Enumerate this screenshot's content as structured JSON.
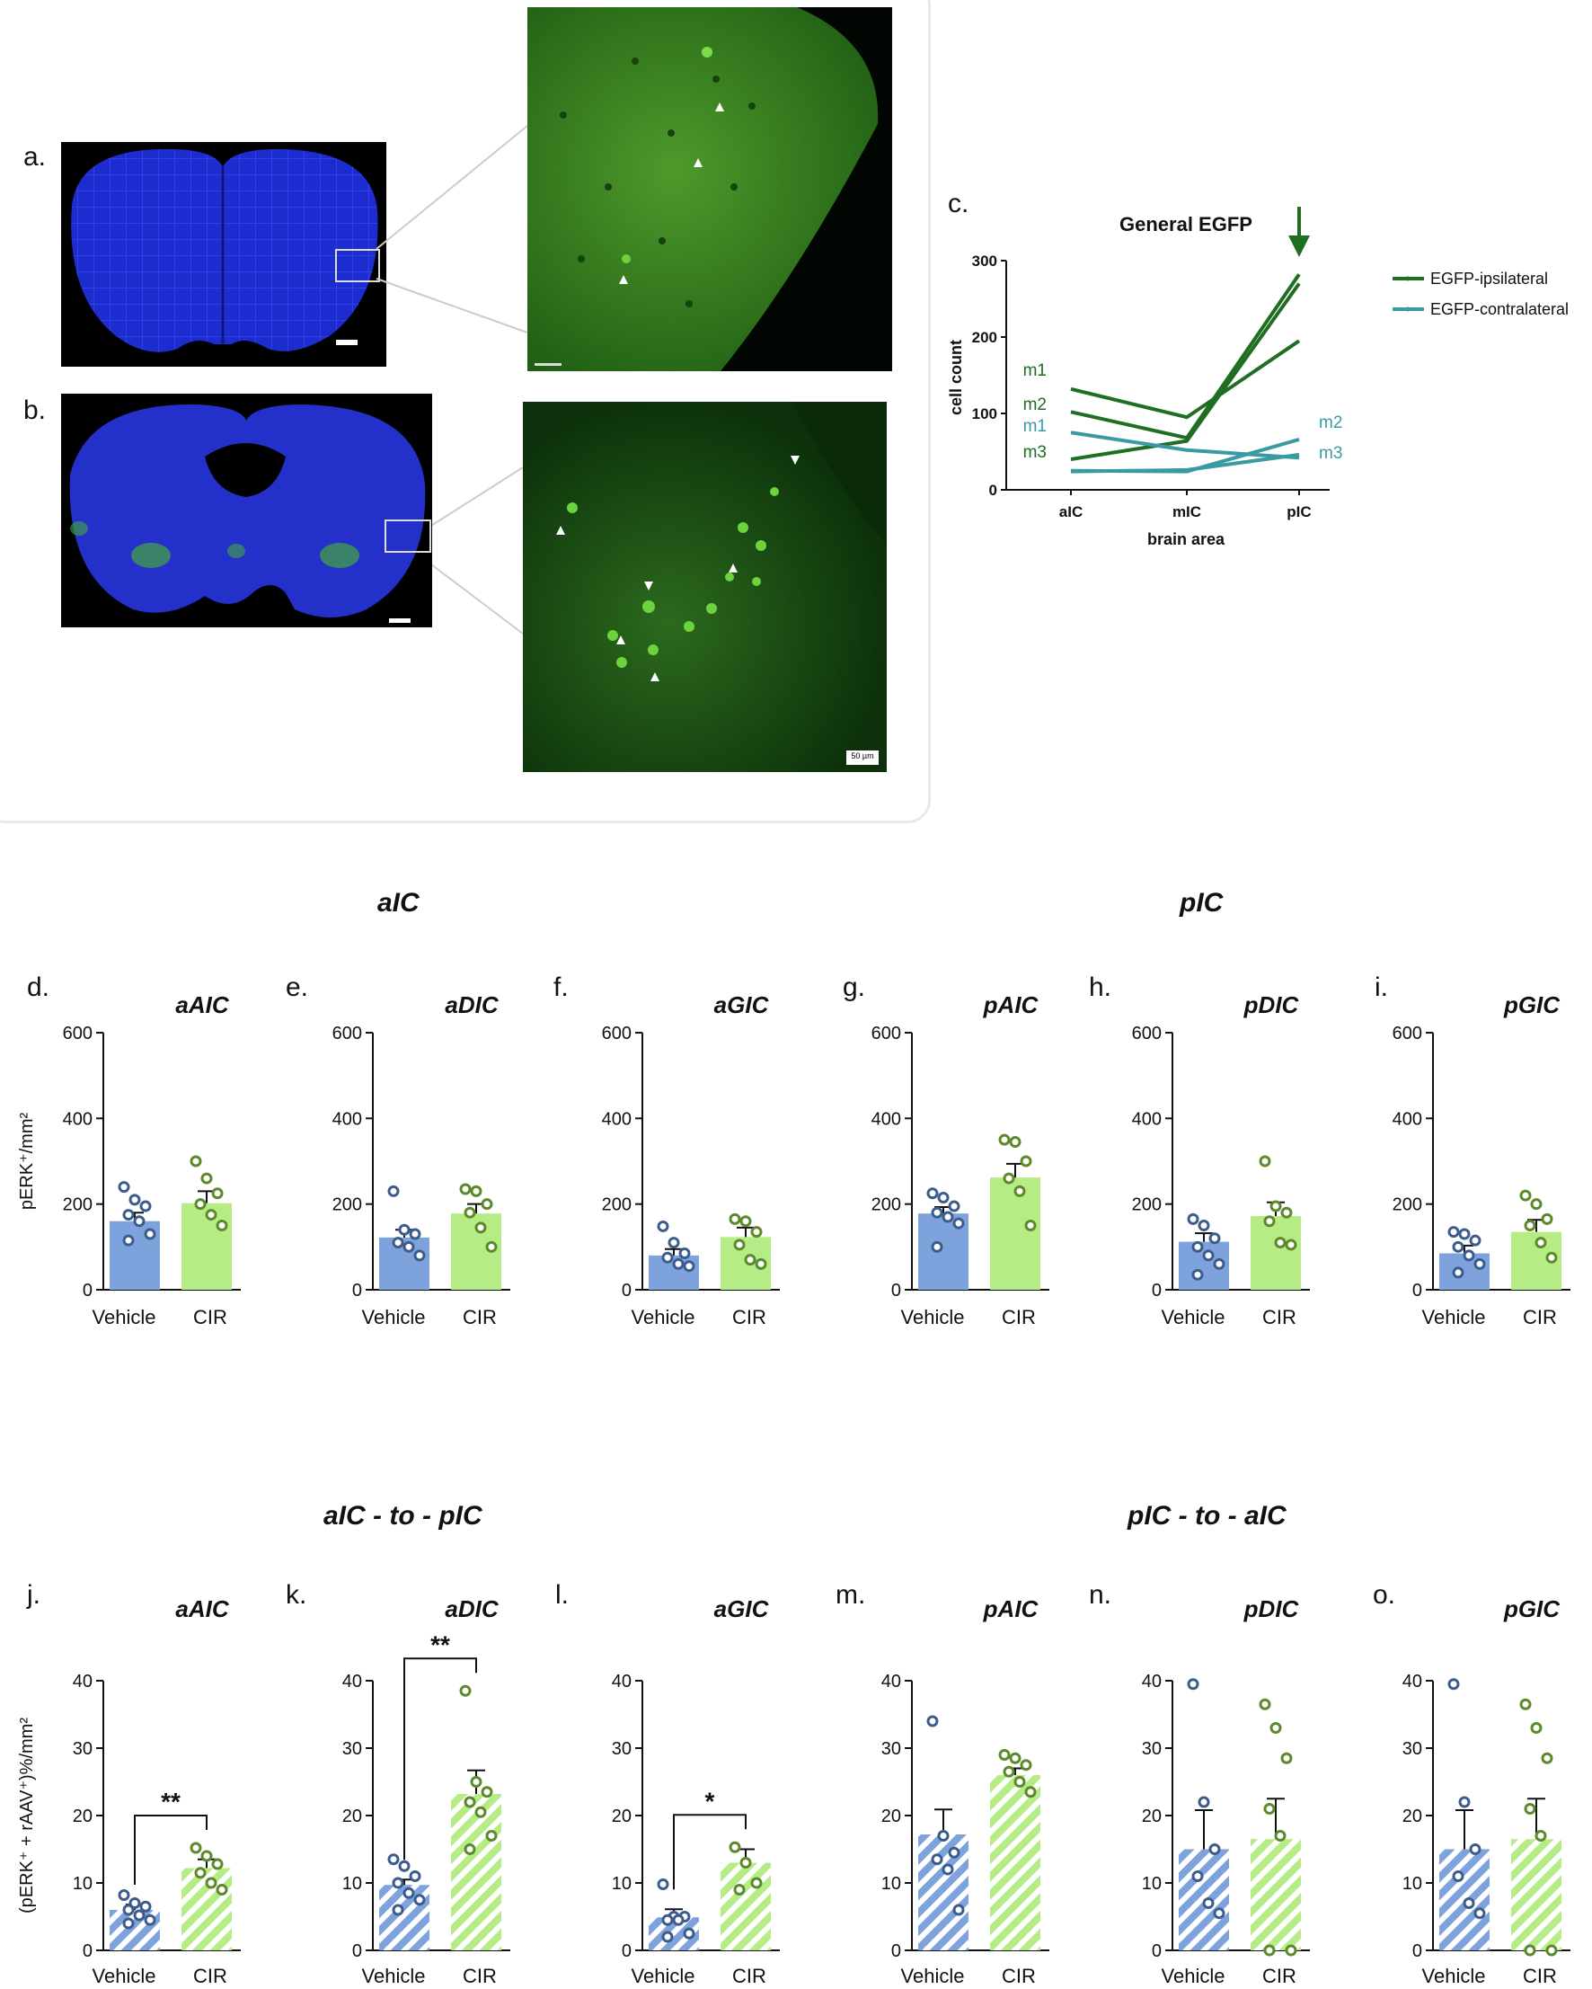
{
  "panel_labels": {
    "a": "a.",
    "b": "b.",
    "c": "c.",
    "d": "d.",
    "e": "e.",
    "f": "f.",
    "g": "g.",
    "h": "h.",
    "i": "i.",
    "j": "j.",
    "k": "k.",
    "l": "l.",
    "m": "m.",
    "n": "n.",
    "o": "o."
  },
  "scale_bar": "50 µm",
  "section_titles": {
    "top_left": "aIC",
    "top_right": "pIC",
    "bottom_left": "aIC - to - pIC",
    "bottom_right": "pIC - to - aIC"
  },
  "colors": {
    "vehicle": "#7ea3dc",
    "cir": "#b6ec86",
    "vehicle_dot": "#3d5c8e",
    "cir_dot": "#5c8a2a",
    "ipsi": "#1f6e22",
    "contra": "#3a9aa2",
    "micro_bg": "#0c3a0c",
    "dapi": "#1f2fd8"
  },
  "chart_data": [
    {
      "id": "c",
      "type": "line",
      "title": "General EGFP",
      "xlabel": "brain area",
      "ylabel": "cell count",
      "categories": [
        "aIC",
        "mIC",
        "pIC"
      ],
      "ylim": [
        0,
        300
      ],
      "yticks": [
        0,
        100,
        200,
        300
      ],
      "series": [
        {
          "name": "EGFP-ipsilateral",
          "group": "ipsi",
          "labels": [
            "m1",
            "m2",
            "m3"
          ],
          "lines": [
            [
              132,
              95,
              195
            ],
            [
              102,
              68,
              282
            ],
            [
              40,
              64,
              270
            ]
          ]
        },
        {
          "name": "EGFP-contralateral",
          "group": "contra",
          "labels": [
            "m1",
            "m2",
            "m3"
          ],
          "lines": [
            [
              75,
              52,
              42
            ],
            [
              25,
              24,
              66
            ],
            [
              24,
              26,
              46
            ]
          ]
        }
      ]
    },
    {
      "id": "d",
      "type": "bar",
      "title": "aAIC",
      "ylabel": "pERK⁺/mm²",
      "ylim": [
        0,
        600
      ],
      "yticks": [
        0,
        200,
        400,
        600
      ],
      "categories": [
        "Vehicle",
        "CIR"
      ],
      "values": [
        160,
        202
      ],
      "sem": [
        20,
        28
      ],
      "points": [
        [
          240,
          210,
          195,
          175,
          160,
          130,
          115
        ],
        [
          300,
          260,
          225,
          200,
          175,
          150
        ]
      ],
      "hatched": false
    },
    {
      "id": "e",
      "type": "bar",
      "title": "aDIC",
      "ylim": [
        0,
        600
      ],
      "yticks": [
        0,
        200,
        400,
        600
      ],
      "categories": [
        "Vehicle",
        "CIR"
      ],
      "values": [
        122,
        178
      ],
      "sem": [
        18,
        22
      ],
      "points": [
        [
          230,
          140,
          130,
          110,
          100,
          80
        ],
        [
          235,
          230,
          200,
          180,
          145,
          100
        ]
      ],
      "hatched": false
    },
    {
      "id": "f",
      "type": "bar",
      "title": "aGIC",
      "ylim": [
        0,
        600
      ],
      "yticks": [
        0,
        200,
        400,
        600
      ],
      "categories": [
        "Vehicle",
        "CIR"
      ],
      "values": [
        80,
        123
      ],
      "sem": [
        15,
        22
      ],
      "points": [
        [
          148,
          110,
          85,
          75,
          60,
          55
        ],
        [
          165,
          160,
          135,
          105,
          70,
          60
        ]
      ],
      "hatched": false
    },
    {
      "id": "g",
      "type": "bar",
      "title": "pAIC",
      "ylim": [
        0,
        600
      ],
      "yticks": [
        0,
        200,
        400,
        600
      ],
      "categories": [
        "Vehicle",
        "CIR"
      ],
      "values": [
        178,
        262
      ],
      "sem": [
        15,
        32
      ],
      "points": [
        [
          225,
          215,
          195,
          180,
          170,
          155,
          100
        ],
        [
          350,
          345,
          300,
          260,
          230,
          150
        ]
      ],
      "hatched": false
    },
    {
      "id": "h",
      "type": "bar",
      "title": "pDIC",
      "ylim": [
        0,
        600
      ],
      "yticks": [
        0,
        200,
        400,
        600
      ],
      "categories": [
        "Vehicle",
        "CIR"
      ],
      "values": [
        112,
        172
      ],
      "sem": [
        20,
        32
      ],
      "points": [
        [
          165,
          150,
          120,
          100,
          80,
          60,
          35
        ],
        [
          300,
          195,
          180,
          160,
          110,
          105
        ]
      ],
      "hatched": false
    },
    {
      "id": "i",
      "type": "bar",
      "title": "pGIC",
      "ylim": [
        0,
        600
      ],
      "yticks": [
        0,
        200,
        400,
        600
      ],
      "categories": [
        "Vehicle",
        "CIR"
      ],
      "values": [
        85,
        135
      ],
      "sem": [
        18,
        28
      ],
      "points": [
        [
          135,
          130,
          115,
          100,
          80,
          60,
          40
        ],
        [
          220,
          200,
          165,
          150,
          110,
          75
        ]
      ],
      "hatched": false
    },
    {
      "id": "j",
      "type": "bar",
      "title": "aAIC",
      "ylabel": "(pERK⁺ + rAAV⁺)%/mm²",
      "ylim": [
        0,
        40
      ],
      "yticks": [
        0,
        10,
        20,
        30,
        40
      ],
      "categories": [
        "Vehicle",
        "CIR"
      ],
      "values": [
        6,
        12.2
      ],
      "sem": [
        0.8,
        1.3
      ],
      "points": [
        [
          8.2,
          7.0,
          6.5,
          6.0,
          5.2,
          4.5,
          4.0
        ],
        [
          15.2,
          14.0,
          12.8,
          11.5,
          10.0,
          9.0
        ]
      ],
      "hatched": true,
      "sig": "**"
    },
    {
      "id": "k",
      "type": "bar",
      "title": "aDIC",
      "ylim": [
        0,
        40
      ],
      "yticks": [
        0,
        10,
        20,
        30,
        40
      ],
      "categories": [
        "Vehicle",
        "CIR"
      ],
      "values": [
        9.7,
        23.2
      ],
      "sem": [
        0.8,
        3.5
      ],
      "points": [
        [
          13.5,
          12.5,
          11.0,
          10.0,
          8.5,
          7.5,
          6.0
        ],
        [
          38.5,
          25.0,
          23.5,
          22.0,
          20.5,
          17.0,
          15.0
        ]
      ],
      "hatched": true,
      "sig": "**"
    },
    {
      "id": "l",
      "type": "bar",
      "title": "aGIC",
      "ylim": [
        0,
        40
      ],
      "yticks": [
        0,
        10,
        20,
        30,
        40
      ],
      "categories": [
        "Vehicle",
        "CIR"
      ],
      "values": [
        4.9,
        13
      ],
      "sem": [
        1.2,
        2
      ],
      "points": [
        [
          9.8,
          5.0,
          5.0,
          4.5,
          4.5,
          2.5,
          2.0
        ],
        [
          15.3,
          13.0,
          10.0,
          9.0
        ]
      ],
      "hatched": true,
      "sig": "*"
    },
    {
      "id": "m",
      "type": "bar",
      "title": "pAIC",
      "ylim": [
        0,
        40
      ],
      "yticks": [
        0,
        10,
        20,
        30,
        40
      ],
      "categories": [
        "Vehicle",
        "CIR"
      ],
      "values": [
        17.2,
        26
      ],
      "sem": [
        3.7,
        1
      ],
      "points": [
        [
          34.0,
          17.0,
          14.5,
          13.5,
          12.0,
          6.0
        ],
        [
          29.0,
          28.5,
          27.5,
          26.5,
          25.0,
          23.5
        ]
      ],
      "hatched": true
    },
    {
      "id": "n",
      "type": "bar",
      "title": "pDIC",
      "ylim": [
        0,
        40
      ],
      "yticks": [
        0,
        10,
        20,
        30,
        40
      ],
      "categories": [
        "Vehicle",
        "CIR"
      ],
      "values": [
        15,
        16.5
      ],
      "sem": [
        5.8,
        6
      ],
      "points": [
        [
          39.5,
          22.0,
          15.0,
          11.0,
          7.0,
          5.5
        ],
        [
          36.5,
          33.0,
          28.5,
          21.0,
          17.0,
          0,
          0
        ]
      ],
      "hatched": true
    },
    {
      "id": "o",
      "type": "bar",
      "title": "pGIC",
      "ylim": [
        0,
        40
      ],
      "yticks": [
        0,
        10,
        20,
        30,
        40
      ],
      "categories": [
        "Vehicle",
        "CIR"
      ],
      "values": [
        15,
        16.5
      ],
      "sem": [
        5.8,
        6
      ],
      "points": [
        [
          39.5,
          22.0,
          15.0,
          11.0,
          7.0,
          5.5
        ],
        [
          36.5,
          33.0,
          28.5,
          21.0,
          17.0,
          0,
          0
        ]
      ],
      "hatched": true
    }
  ]
}
